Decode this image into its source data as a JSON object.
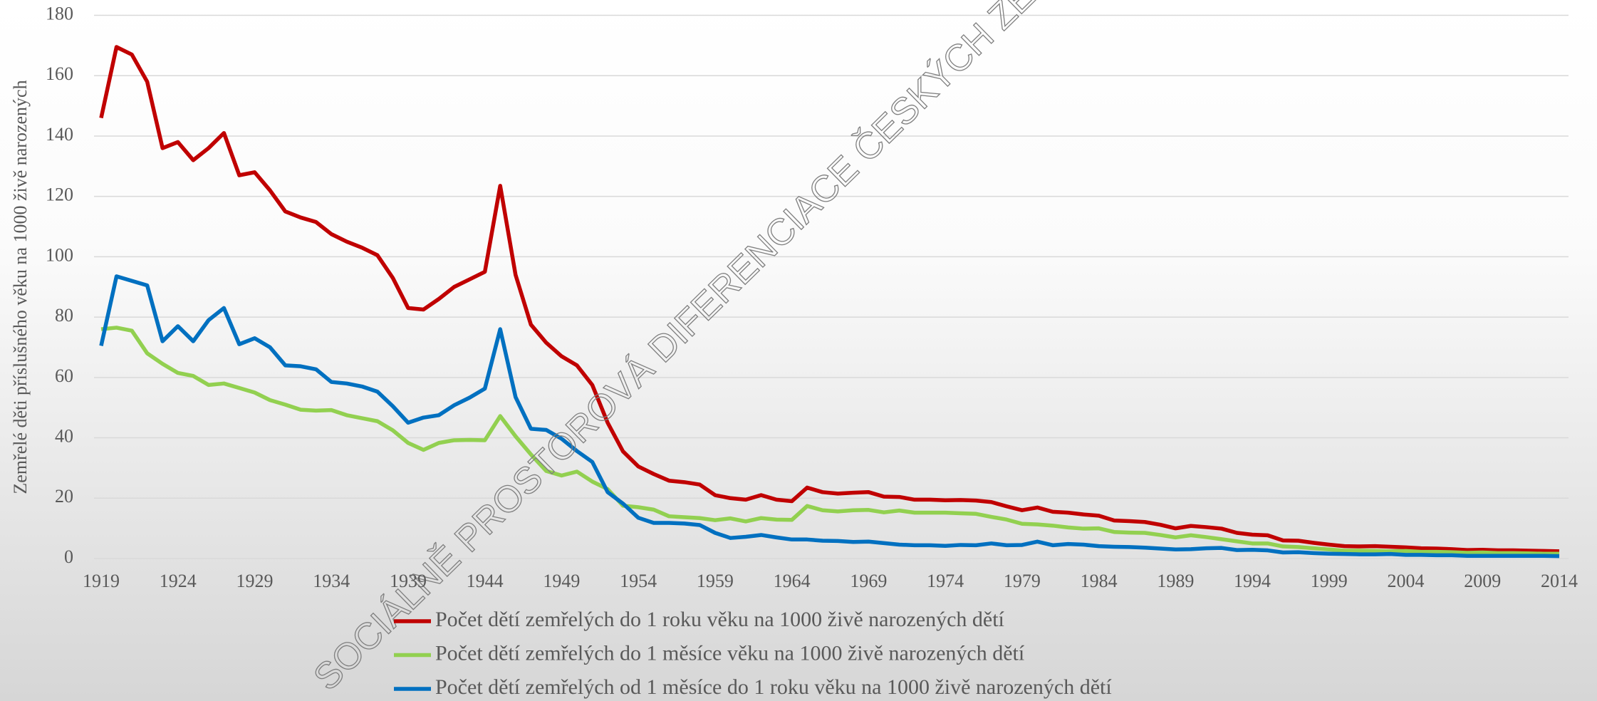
{
  "chart_data": {
    "type": "line",
    "y_label": "Zemřelé děti příslušného věku na 1000 živě narozených",
    "watermark": "SOCIÁLNĚ PROSTOROVÁ DIFERENCIACE ČESKÝCH ZEMÍ V HISTO",
    "x": [
      1919,
      1920,
      1921,
      1922,
      1923,
      1924,
      1925,
      1926,
      1927,
      1928,
      1929,
      1930,
      1931,
      1932,
      1933,
      1934,
      1935,
      1936,
      1937,
      1938,
      1939,
      1940,
      1941,
      1942,
      1943,
      1944,
      1945,
      1946,
      1947,
      1948,
      1949,
      1950,
      1951,
      1952,
      1953,
      1954,
      1955,
      1956,
      1957,
      1958,
      1959,
      1960,
      1961,
      1962,
      1963,
      1964,
      1965,
      1966,
      1967,
      1968,
      1969,
      1970,
      1971,
      1972,
      1973,
      1974,
      1975,
      1976,
      1977,
      1978,
      1979,
      1980,
      1981,
      1982,
      1983,
      1984,
      1985,
      1986,
      1987,
      1988,
      1989,
      1990,
      1991,
      1992,
      1993,
      1994,
      1995,
      1996,
      1997,
      1998,
      1999,
      2000,
      2001,
      2002,
      2003,
      2004,
      2005,
      2006,
      2007,
      2008,
      2009,
      2010,
      2011,
      2012,
      2013,
      2014
    ],
    "xlim": [
      1919,
      2014
    ],
    "xticks": [
      1919,
      1924,
      1929,
      1934,
      1939,
      1944,
      1949,
      1954,
      1959,
      1964,
      1969,
      1974,
      1979,
      1984,
      1989,
      1994,
      1999,
      2004,
      2009,
      2014
    ],
    "ylim": [
      0,
      180
    ],
    "yticks": [
      0,
      20,
      40,
      60,
      80,
      100,
      120,
      140,
      160,
      180
    ],
    "grid": true,
    "legend": "bottom",
    "series": [
      {
        "name": "Počet dětí zemřelých do 1 roku věku na 1000 živě narozených dětí",
        "color": "#c00000",
        "values": [
          146,
          169.5,
          167,
          158,
          136,
          138,
          132,
          136,
          141,
          127,
          128,
          122,
          115,
          113,
          111.5,
          107.5,
          105,
          103,
          100.5,
          93,
          83,
          82.5,
          86,
          90,
          92.5,
          95,
          123.5,
          94,
          77.5,
          71.5,
          67,
          64,
          57.5,
          45,
          35.5,
          30.5,
          28,
          25.8,
          25.3,
          24.5,
          21,
          20,
          19.5,
          21,
          19.5,
          19,
          23.5,
          22,
          21.5,
          21.8,
          22,
          20.5,
          20.4,
          19.5,
          19.5,
          19.3,
          19.4,
          19.2,
          18.7,
          17.3,
          16,
          16.9,
          15.5,
          15.2,
          14.6,
          14.2,
          12.6,
          12.4,
          12.1,
          11.2,
          10,
          10.8,
          10.4,
          9.9,
          8.5,
          7.9,
          7.7,
          6,
          5.9,
          5.2,
          4.6,
          4.1,
          4,
          4.1,
          3.9,
          3.7,
          3.4,
          3.3,
          3.1,
          2.8,
          2.9,
          2.7,
          2.7,
          2.6,
          2.5,
          2.4
        ]
      },
      {
        "name": "Počet dětí zemřelých do 1 měsíce věku na 1000 živě narozených dětí",
        "color": "#92d050",
        "values": [
          76,
          76.5,
          75.5,
          68,
          64.5,
          61.5,
          60.5,
          57.5,
          58,
          56.5,
          55,
          52.5,
          51,
          49.3,
          49,
          49.2,
          47.5,
          46.5,
          45.5,
          42.5,
          38.3,
          36,
          38.3,
          39.2,
          39.3,
          39.2,
          47.2,
          40.5,
          34.5,
          29,
          27.5,
          28.8,
          25.5,
          23,
          17.5,
          17,
          16.2,
          14,
          13.7,
          13.4,
          12.7,
          13.3,
          12.3,
          13.4,
          12.9,
          12.8,
          17.4,
          16,
          15.6,
          16,
          16.1,
          15.3,
          15.9,
          15.2,
          15.2,
          15.2,
          15,
          14.8,
          13.8,
          12.9,
          11.5,
          11.3,
          10.9,
          10.3,
          9.9,
          10,
          8.8,
          8.6,
          8.5,
          7.8,
          7,
          7.7,
          7.1,
          6.4,
          5.7,
          5,
          5,
          4,
          3.8,
          3.4,
          3,
          2.6,
          2.6,
          2.5,
          2.4,
          2.5,
          2.2,
          2.2,
          2.1,
          1.9,
          2,
          1.8,
          1.8,
          1.7,
          1.6,
          1.6
        ]
      },
      {
        "name": "Počet dětí zemřelých od 1 měsíce do 1 roku věku na 1000 živě narozených dětí",
        "color": "#0070c0",
        "values": [
          70.5,
          93.5,
          92,
          90.5,
          72,
          77,
          72,
          79,
          83,
          71,
          73,
          70,
          64,
          63.7,
          62.7,
          58.5,
          58,
          57,
          55.3,
          50.5,
          45,
          46.7,
          47.5,
          50.8,
          53.3,
          56.3,
          76,
          53.5,
          43,
          42.6,
          39.7,
          35.6,
          32,
          22,
          18.2,
          13.5,
          11.8,
          11.8,
          11.6,
          11.1,
          8.5,
          6.8,
          7.2,
          7.8,
          7,
          6.3,
          6.3,
          5.9,
          5.8,
          5.5,
          5.6,
          5.1,
          4.6,
          4.4,
          4.4,
          4.2,
          4.5,
          4.4,
          5,
          4.4,
          4.5,
          5.6,
          4.4,
          4.8,
          4.6,
          4.1,
          3.9,
          3.8,
          3.6,
          3.3,
          3,
          3.1,
          3.4,
          3.5,
          2.8,
          2.9,
          2.7,
          2,
          2.1,
          1.8,
          1.6,
          1.5,
          1.4,
          1.4,
          1.5,
          1.2,
          1.2,
          1.1,
          1.1,
          0.9,
          0.9,
          0.9,
          0.9,
          0.9,
          0.9,
          0.8
        ]
      }
    ]
  }
}
